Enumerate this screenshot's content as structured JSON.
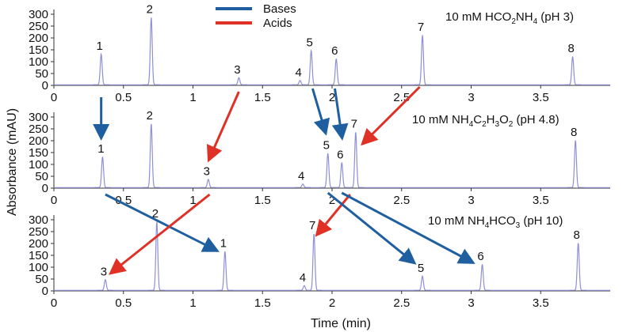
{
  "chart_data": {
    "type": "line",
    "xlabel": "Time (min)",
    "ylabel": "Absorbance (mAU)",
    "xlim": [
      0,
      4.0
    ],
    "ylim": [
      0,
      320
    ],
    "x_ticks": [
      "0",
      "0.5",
      "1",
      "1.5",
      "2",
      "2.5",
      "3",
      "3.5"
    ],
    "y_ticks": [
      "0",
      "50",
      "100",
      "150",
      "200",
      "250",
      "300"
    ],
    "trace_color": "#8f8fd6",
    "legend": {
      "position": "top-center",
      "items": [
        {
          "label": "Bases",
          "color": "#1f5fa0"
        },
        {
          "label": "Acids",
          "color": "#e03126"
        }
      ]
    },
    "panels": [
      {
        "condition_main": "10 mM HCO",
        "condition_sub1": "2",
        "condition_mid": "NH",
        "condition_sub2": "4",
        "condition_tail": " (pH 3)",
        "peaks": [
          {
            "label": "1",
            "time": 0.34,
            "height": 130
          },
          {
            "label": "2",
            "time": 0.7,
            "height": 285
          },
          {
            "label": "3",
            "time": 1.33,
            "height": 30
          },
          {
            "label": "4",
            "time": 1.77,
            "height": 18
          },
          {
            "label": "5",
            "time": 1.85,
            "height": 145
          },
          {
            "label": "6",
            "time": 2.03,
            "height": 110
          },
          {
            "label": "7",
            "time": 2.65,
            "height": 210
          },
          {
            "label": "8",
            "time": 3.73,
            "height": 120
          }
        ]
      },
      {
        "condition_main": "10 mM NH",
        "condition_sub1": "4",
        "condition_mid": "C",
        "condition_sub2": "2",
        "condition_mid2": "H",
        "condition_sub3": "3",
        "condition_mid3": "O",
        "condition_sub4": "2",
        "condition_tail": " (pH 4.8)",
        "peaks": [
          {
            "label": "1",
            "time": 0.35,
            "height": 130
          },
          {
            "label": "2",
            "time": 0.7,
            "height": 270
          },
          {
            "label": "3",
            "time": 1.11,
            "height": 35
          },
          {
            "label": "4",
            "time": 1.79,
            "height": 15
          },
          {
            "label": "5",
            "time": 1.97,
            "height": 145
          },
          {
            "label": "6",
            "time": 2.07,
            "height": 105
          },
          {
            "label": "7",
            "time": 2.17,
            "height": 235
          },
          {
            "label": "8",
            "time": 3.75,
            "height": 200
          }
        ]
      },
      {
        "condition_main": "10 mM NH",
        "condition_sub1": "4",
        "condition_mid": "HCO",
        "condition_sub2": "3",
        "condition_tail": " (pH 10)",
        "peaks": [
          {
            "label": "3",
            "time": 0.37,
            "height": 45
          },
          {
            "label": "2",
            "time": 0.74,
            "height": 290
          },
          {
            "label": "1",
            "time": 1.23,
            "height": 165
          },
          {
            "label": "4",
            "time": 1.8,
            "height": 20
          },
          {
            "label": "7",
            "time": 1.87,
            "height": 240
          },
          {
            "label": "5",
            "time": 2.65,
            "height": 60
          },
          {
            "label": "6",
            "time": 3.08,
            "height": 110
          },
          {
            "label": "8",
            "time": 3.77,
            "height": 200
          }
        ]
      }
    ]
  }
}
